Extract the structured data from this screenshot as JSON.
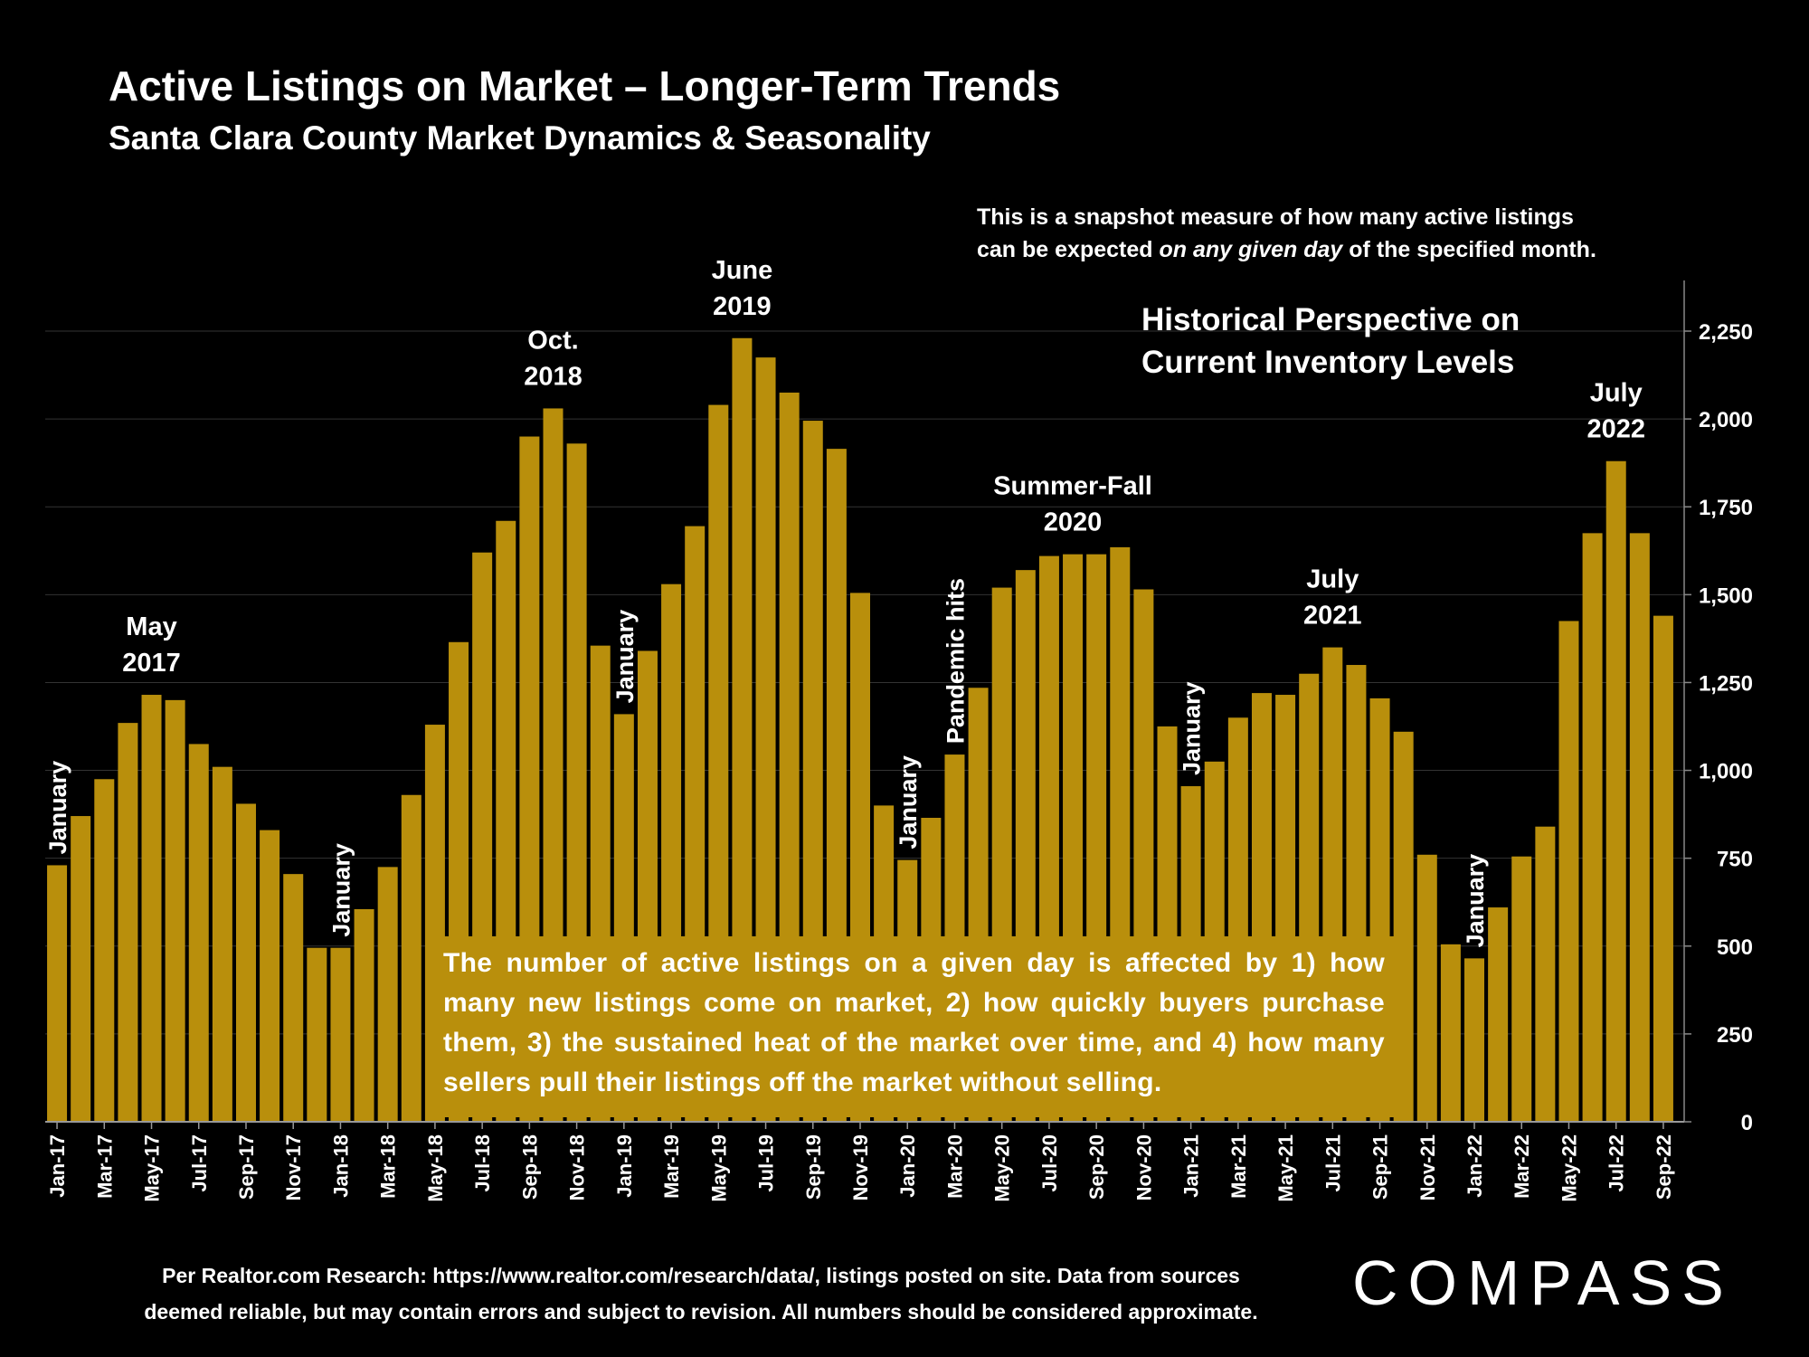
{
  "title": "Active Listings on Market – Longer-Term Trends",
  "subtitle": "Santa Clara County Market Dynamics & Seasonality",
  "note": {
    "line1": "This is a snapshot measure of how many active listings",
    "line2_before": "can be expected ",
    "line2_emph": "on any given day",
    "line2_after": " of the specified month."
  },
  "perspective": {
    "line1": "Historical Perspective on",
    "line2": "Current Inventory Levels"
  },
  "explanation": "The number of active listings on a given day is affected by 1) how many new listings come on market, 2) how quickly buyers purchase them, 3) the sustained heat of the market over time, and 4) how many sellers pull their listings off the market without selling.",
  "footer": {
    "line1": "Per Realtor.com Research:  https://www.realtor.com/research/data/, listings posted on site. Data from sources",
    "line2": "deemed reliable, but may contain errors and subject to revision. All numbers should be considered approximate."
  },
  "logo": "COMPASS",
  "colors": {
    "background": "#000000",
    "bar": "#b98f0c",
    "text": "#ffffff",
    "grid": "#333333"
  },
  "chart_data": {
    "type": "bar",
    "categories": [
      "Jan-17",
      "Feb-17",
      "Mar-17",
      "Apr-17",
      "May-17",
      "Jun-17",
      "Jul-17",
      "Aug-17",
      "Sep-17",
      "Oct-17",
      "Nov-17",
      "Dec-17",
      "Jan-18",
      "Feb-18",
      "Mar-18",
      "Apr-18",
      "May-18",
      "Jun-18",
      "Jul-18",
      "Aug-18",
      "Sep-18",
      "Oct-18",
      "Nov-18",
      "Dec-18",
      "Jan-19",
      "Feb-19",
      "Mar-19",
      "Apr-19",
      "May-19",
      "Jun-19",
      "Jul-19",
      "Aug-19",
      "Sep-19",
      "Oct-19",
      "Nov-19",
      "Dec-19",
      "Jan-20",
      "Feb-20",
      "Mar-20",
      "Apr-20",
      "May-20",
      "Jun-20",
      "Jul-20",
      "Aug-20",
      "Sep-20",
      "Oct-20",
      "Nov-20",
      "Dec-20",
      "Jan-21",
      "Feb-21",
      "Mar-21",
      "Apr-21",
      "May-21",
      "Jun-21",
      "Jul-21",
      "Aug-21",
      "Sep-21",
      "Oct-21",
      "Nov-21",
      "Dec-21",
      "Jan-22",
      "Feb-22",
      "Mar-22",
      "Apr-22",
      "May-22",
      "Jun-22",
      "Jul-22",
      "Aug-22",
      "Sep-22"
    ],
    "tick_labels": [
      "Jan-17",
      "Mar-17",
      "May-17",
      "Jul-17",
      "Sep-17",
      "Nov-17",
      "Jan-18",
      "Mar-18",
      "May-18",
      "Jul-18",
      "Sep-18",
      "Nov-18",
      "Jan-19",
      "Mar-19",
      "May-19",
      "Jul-19",
      "Sep-19",
      "Nov-19",
      "Jan-20",
      "Mar-20",
      "May-20",
      "Jul-20",
      "Sep-20",
      "Nov-20",
      "Jan-21",
      "Mar-21",
      "May-21",
      "Jul-21",
      "Sep-21",
      "Nov-21",
      "Jan-22",
      "Mar-22",
      "May-22",
      "Jul-22",
      "Sep-22"
    ],
    "values": [
      730,
      870,
      975,
      1135,
      1215,
      1200,
      1075,
      1010,
      905,
      830,
      705,
      495,
      495,
      605,
      725,
      930,
      1130,
      1365,
      1620,
      1710,
      1950,
      2030,
      1930,
      1355,
      1160,
      1340,
      1530,
      1695,
      2040,
      2230,
      2175,
      2075,
      1995,
      1915,
      1505,
      900,
      745,
      865,
      1045,
      1235,
      1520,
      1570,
      1610,
      1615,
      1615,
      1635,
      1515,
      1125,
      955,
      1025,
      1150,
      1220,
      1215,
      1275,
      1350,
      1300,
      1205,
      1110,
      760,
      505,
      465,
      610,
      755,
      840,
      1425,
      1675,
      1880,
      1675,
      1440
    ],
    "ylim": [
      0,
      2250
    ],
    "yticks": [
      "0",
      "250",
      "500",
      "750",
      "1,000",
      "1,250",
      "1,500",
      "1,750",
      "2,000",
      "2,250"
    ],
    "y_axis_side": "right",
    "grid": true,
    "annotations": [
      {
        "text": "January",
        "index": 0,
        "rotated": true
      },
      {
        "text": "January",
        "index": 12,
        "rotated": true
      },
      {
        "text": "January",
        "index": 24,
        "rotated": true
      },
      {
        "text": "January",
        "index": 36,
        "rotated": true
      },
      {
        "text": "Pandemic hits",
        "index": 38,
        "rotated": true
      },
      {
        "text": "January",
        "index": 48,
        "rotated": true
      },
      {
        "text": "January",
        "index": 60,
        "rotated": true
      },
      {
        "text": "May 2017",
        "line1": "May",
        "line2": "2017",
        "index": 4,
        "rotated": false
      },
      {
        "text": "Oct. 2018",
        "line1": "Oct.",
        "line2": "2018",
        "index": 21,
        "rotated": false
      },
      {
        "text": "June 2019",
        "line1": "June",
        "line2": "2019",
        "index": 29,
        "rotated": false
      },
      {
        "text": "Summer-Fall 2020",
        "line1": "Summer-Fall",
        "line2": "2020",
        "index": 43,
        "rotated": false
      },
      {
        "text": "July 2021",
        "line1": "July",
        "line2": "2021",
        "index": 54,
        "rotated": false
      },
      {
        "text": "July 2022",
        "line1": "July",
        "line2": "2022",
        "index": 66,
        "rotated": false
      }
    ]
  }
}
